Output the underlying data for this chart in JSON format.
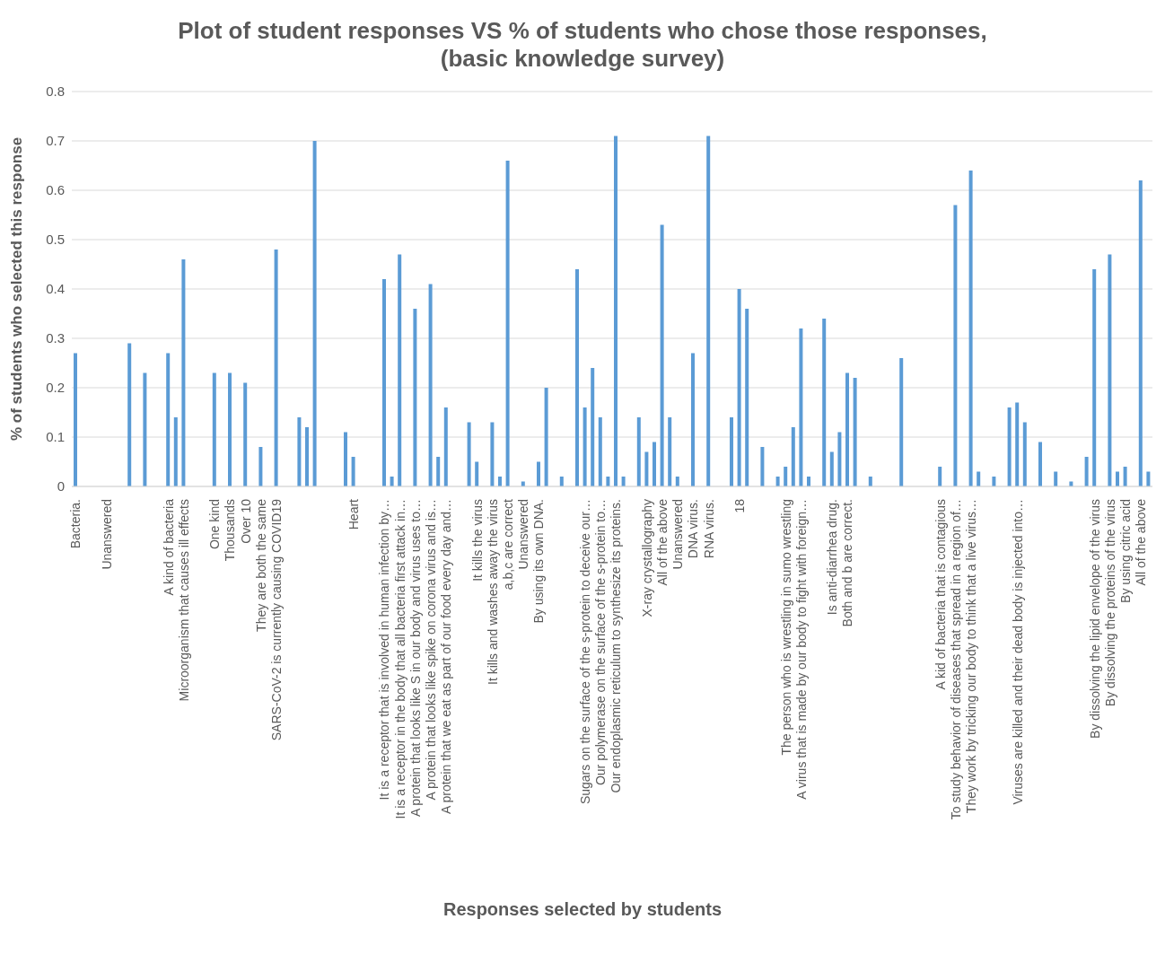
{
  "chart_data": {
    "type": "bar",
    "title": "Plot of student responses VS % of students who chose those responses, (basic knowledge survey)",
    "xlabel": "Responses selected by students",
    "ylabel": "% of students who selected this response",
    "categories": [
      "Bacteria.",
      null,
      null,
      null,
      "Unanswered",
      null,
      null,
      null,
      null,
      null,
      null,
      null,
      "A kind of bacteria",
      null,
      "Microorganism that causes ill effects",
      null,
      null,
      null,
      "One kind",
      null,
      "Thousands",
      null,
      "Over 10",
      null,
      "They are both the same",
      null,
      "SARS-CoV-2 is currently causing COVID19",
      null,
      null,
      null,
      null,
      null,
      null,
      null,
      null,
      null,
      "Heart",
      null,
      null,
      null,
      "It is a receptor that is involved in human infection by…",
      null,
      "It is a receptor in the body that all bacteria first attack in…",
      null,
      "A protein that looks like S in our body and virus uses to…",
      null,
      "A protein that looks like spike on corona virus and is…",
      null,
      "A protein that we eat as part of our food every day and…",
      null,
      null,
      null,
      "It kills the virus",
      null,
      "It kills and washes away the virus",
      null,
      "a,b,c are correct",
      null,
      "Unanswered",
      null,
      "By using its own DNA.",
      null,
      null,
      null,
      null,
      null,
      "Sugars on the surface of the s-protein to deceive our…",
      null,
      "Our polymerase on the surface of the s-protein to…",
      null,
      "Our endoplasmic reticulum to synthesize its proteins.",
      null,
      null,
      null,
      "X-ray crystallography",
      null,
      "All of the above",
      null,
      "Unanswered",
      null,
      "DNA virus.",
      null,
      "RNA virus.",
      null,
      null,
      null,
      "18",
      null,
      null,
      null,
      null,
      null,
      "The person who is wrestling in sumo wrestling",
      null,
      "A virus that is made by our body to fight with foreign…",
      null,
      null,
      null,
      "Is anti-diarrhea drug.",
      null,
      "Both and b are correct.",
      null,
      null,
      null,
      null,
      null,
      null,
      null,
      null,
      null,
      null,
      null,
      "A kid of bacteria that is contagious",
      null,
      "To study behavior of diseases that spread in a region of…",
      null,
      "They work by tricking our body to think that a live virus…",
      null,
      null,
      null,
      null,
      null,
      "Viruses are killed and their dead body is injected into…",
      null,
      null,
      null,
      null,
      null,
      null,
      null,
      null,
      null,
      "By dissolving the lipid envelope of the virus",
      null,
      "By dissolving the proteins of the virus",
      null,
      "By using citric acid",
      null,
      "All of the above",
      null
    ],
    "values": [
      0.27,
      null,
      null,
      null,
      null,
      null,
      null,
      0.29,
      null,
      0.23,
      null,
      null,
      0.27,
      0.14,
      0.46,
      null,
      null,
      null,
      0.23,
      null,
      0.23,
      null,
      0.21,
      null,
      0.08,
      null,
      0.48,
      null,
      null,
      0.14,
      0.12,
      0.7,
      null,
      null,
      null,
      0.11,
      0.06,
      null,
      null,
      null,
      0.42,
      0.02,
      0.47,
      null,
      0.36,
      null,
      0.41,
      0.06,
      0.16,
      null,
      null,
      0.13,
      0.05,
      null,
      0.13,
      0.02,
      0.66,
      null,
      0.01,
      null,
      0.05,
      0.2,
      null,
      0.02,
      null,
      0.44,
      0.16,
      0.24,
      0.14,
      0.02,
      0.71,
      0.02,
      null,
      0.14,
      0.07,
      0.09,
      0.53,
      0.14,
      0.02,
      null,
      0.27,
      null,
      0.71,
      null,
      null,
      0.14,
      0.4,
      0.36,
      null,
      0.08,
      null,
      0.02,
      0.04,
      0.12,
      0.32,
      0.02,
      null,
      0.34,
      0.07,
      0.11,
      0.23,
      0.22,
      null,
      0.02,
      null,
      null,
      null,
      0.26,
      null,
      null,
      null,
      null,
      0.04,
      null,
      0.57,
      null,
      0.64,
      0.03,
      null,
      0.02,
      null,
      0.16,
      0.17,
      0.13,
      null,
      0.09,
      null,
      0.03,
      null,
      0.01,
      null,
      0.06,
      0.44,
      null,
      0.47,
      0.03,
      0.04,
      null,
      0.62,
      0.03
    ],
    "color": "#5b9bd5",
    "ylim": [
      0,
      0.8
    ],
    "yticks": [
      0,
      0.1,
      0.2,
      0.3,
      0.4,
      0.5,
      0.6,
      0.7,
      0.8
    ],
    "grid": "y"
  }
}
